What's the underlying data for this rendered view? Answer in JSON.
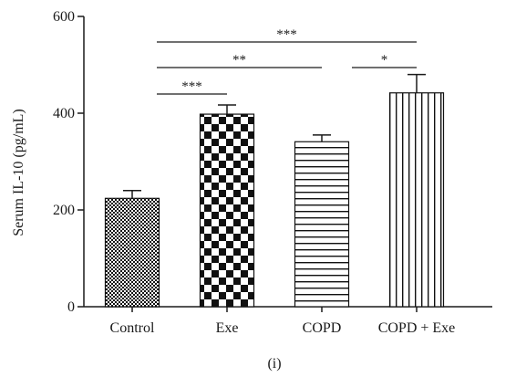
{
  "chart_data": {
    "type": "bar",
    "categories": [
      "Control",
      "Exe",
      "COPD",
      "COPD + Exe"
    ],
    "values": [
      224,
      398,
      341,
      442
    ],
    "errors": [
      16,
      19,
      14,
      38
    ],
    "ylabel": "Serum IL-10 (pg/mL)",
    "xlabel": "",
    "ylim": [
      0,
      600
    ],
    "yticks": [
      0,
      200,
      400,
      600
    ],
    "patterns": [
      "fine-checker",
      "checker",
      "horizontal-lines",
      "vertical-lines"
    ],
    "significance": [
      {
        "from": 0,
        "to": 3,
        "label": "***"
      },
      {
        "from": 0,
        "to": 2,
        "label": "**"
      },
      {
        "from": 0,
        "to": 1,
        "label": "***"
      },
      {
        "from": 2,
        "to": 3,
        "label": "*"
      }
    ],
    "panel_label": "(i)"
  }
}
